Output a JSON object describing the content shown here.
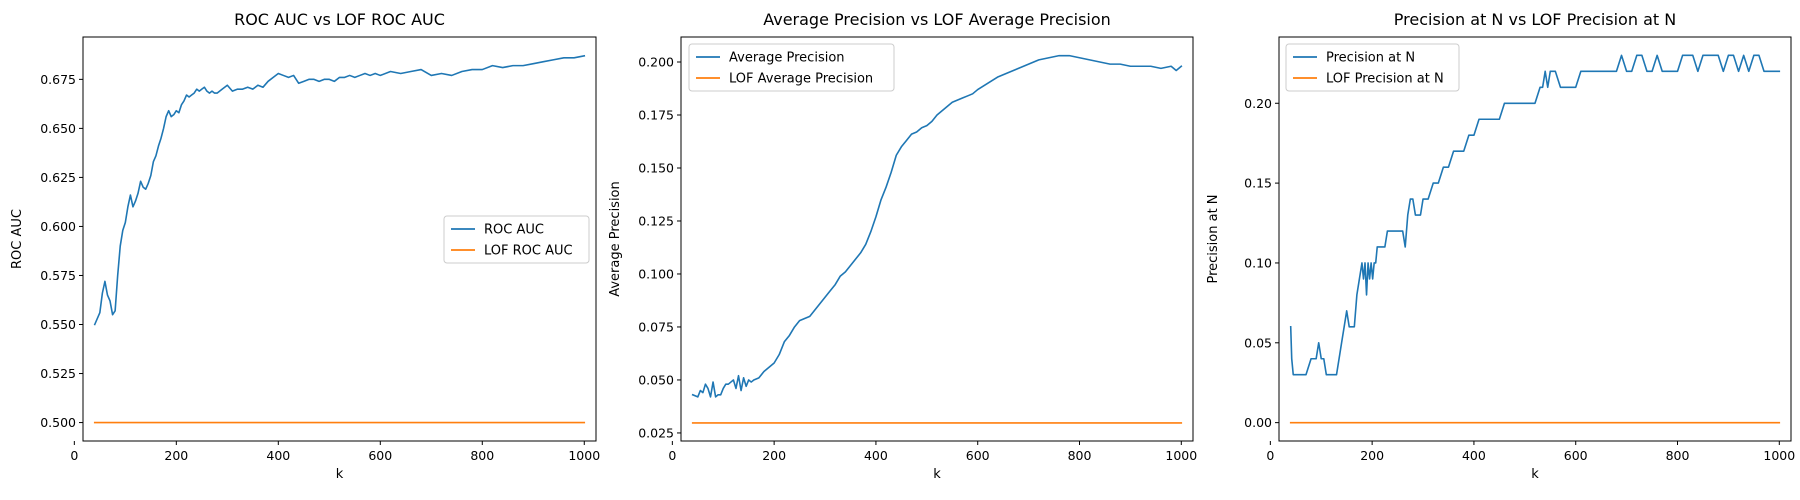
{
  "chart_data": [
    {
      "type": "line",
      "title": "ROC AUC vs LOF ROC AUC",
      "xlabel": "k",
      "ylabel": "ROC AUC",
      "xlim": [
        17,
        1023
      ],
      "ylim": [
        0.4906,
        0.6966
      ],
      "xticks": [
        0,
        200,
        400,
        600,
        800,
        1000
      ],
      "xtick_labels": [
        "0",
        "200",
        "400",
        "600",
        "800",
        "1000"
      ],
      "yticks": [
        0.5,
        0.525,
        0.55,
        0.575,
        0.6,
        0.625,
        0.65,
        0.675
      ],
      "ytick_labels": [
        "0.500",
        "0.525",
        "0.550",
        "0.575",
        "0.600",
        "0.625",
        "0.650",
        "0.675"
      ],
      "legend_position": "center-right",
      "series": [
        {
          "name": "ROC AUC",
          "color": "#1f77b4",
          "x": [
            40,
            50,
            55,
            60,
            65,
            70,
            75,
            80,
            85,
            90,
            95,
            100,
            105,
            110,
            115,
            120,
            125,
            130,
            135,
            140,
            145,
            150,
            155,
            160,
            165,
            170,
            175,
            180,
            185,
            190,
            195,
            200,
            205,
            210,
            215,
            220,
            225,
            230,
            235,
            240,
            245,
            250,
            255,
            260,
            265,
            270,
            275,
            280,
            290,
            300,
            310,
            320,
            330,
            340,
            350,
            360,
            370,
            380,
            390,
            400,
            410,
            420,
            430,
            440,
            450,
            460,
            470,
            480,
            490,
            500,
            510,
            520,
            530,
            540,
            550,
            560,
            570,
            580,
            590,
            600,
            620,
            640,
            660,
            680,
            700,
            720,
            740,
            760,
            780,
            800,
            820,
            840,
            860,
            880,
            900,
            920,
            940,
            960,
            980,
            1000
          ],
          "values": [
            0.55,
            0.556,
            0.566,
            0.572,
            0.565,
            0.562,
            0.555,
            0.557,
            0.575,
            0.59,
            0.598,
            0.602,
            0.61,
            0.616,
            0.61,
            0.613,
            0.617,
            0.623,
            0.62,
            0.619,
            0.622,
            0.626,
            0.633,
            0.636,
            0.641,
            0.645,
            0.65,
            0.656,
            0.659,
            0.656,
            0.657,
            0.659,
            0.658,
            0.662,
            0.664,
            0.667,
            0.666,
            0.667,
            0.668,
            0.67,
            0.669,
            0.67,
            0.671,
            0.669,
            0.668,
            0.669,
            0.668,
            0.668,
            0.67,
            0.672,
            0.669,
            0.67,
            0.67,
            0.671,
            0.67,
            0.672,
            0.671,
            0.674,
            0.676,
            0.678,
            0.677,
            0.676,
            0.677,
            0.673,
            0.674,
            0.675,
            0.675,
            0.674,
            0.675,
            0.675,
            0.674,
            0.676,
            0.676,
            0.677,
            0.676,
            0.677,
            0.678,
            0.677,
            0.678,
            0.677,
            0.679,
            0.678,
            0.679,
            0.68,
            0.677,
            0.678,
            0.677,
            0.679,
            0.68,
            0.68,
            0.682,
            0.681,
            0.682,
            0.682,
            0.683,
            0.684,
            0.685,
            0.686,
            0.686,
            0.687
          ]
        },
        {
          "name": "LOF ROC AUC",
          "color": "#ff7f0e",
          "x": [
            40,
            1000
          ],
          "values": [
            0.5,
            0.5
          ]
        }
      ]
    },
    {
      "type": "line",
      "title": "Average Precision vs LOF Average Precision",
      "xlabel": "k",
      "ylabel": "Average Precision",
      "xlim": [
        17,
        1023
      ],
      "ylim": [
        0.0212,
        0.2118
      ],
      "xticks": [
        0,
        200,
        400,
        600,
        800,
        1000
      ],
      "xtick_labels": [
        "0",
        "200",
        "400",
        "600",
        "800",
        "1000"
      ],
      "yticks": [
        0.025,
        0.05,
        0.075,
        0.1,
        0.125,
        0.15,
        0.175,
        0.2
      ],
      "ytick_labels": [
        "0.025",
        "0.050",
        "0.075",
        "0.100",
        "0.125",
        "0.150",
        "0.175",
        "0.200"
      ],
      "legend_position": "top-left",
      "series": [
        {
          "name": "Average Precision",
          "color": "#1f77b4",
          "x": [
            40,
            50,
            55,
            60,
            65,
            70,
            75,
            80,
            85,
            90,
            95,
            100,
            105,
            110,
            115,
            120,
            125,
            130,
            135,
            140,
            145,
            150,
            155,
            160,
            170,
            180,
            190,
            200,
            210,
            220,
            230,
            240,
            250,
            260,
            270,
            280,
            290,
            300,
            310,
            320,
            330,
            340,
            350,
            360,
            370,
            380,
            390,
            400,
            410,
            420,
            430,
            440,
            450,
            460,
            470,
            480,
            490,
            500,
            510,
            520,
            530,
            540,
            550,
            560,
            570,
            580,
            590,
            600,
            620,
            640,
            660,
            680,
            700,
            720,
            740,
            760,
            780,
            800,
            820,
            840,
            860,
            880,
            900,
            920,
            940,
            960,
            980,
            990,
            1000
          ],
          "values": [
            0.043,
            0.042,
            0.045,
            0.044,
            0.048,
            0.046,
            0.042,
            0.049,
            0.042,
            0.043,
            0.043,
            0.046,
            0.048,
            0.048,
            0.049,
            0.05,
            0.046,
            0.052,
            0.045,
            0.051,
            0.047,
            0.05,
            0.049,
            0.05,
            0.051,
            0.054,
            0.056,
            0.058,
            0.062,
            0.068,
            0.071,
            0.075,
            0.078,
            0.079,
            0.08,
            0.083,
            0.086,
            0.089,
            0.092,
            0.095,
            0.099,
            0.101,
            0.104,
            0.107,
            0.11,
            0.114,
            0.12,
            0.127,
            0.135,
            0.141,
            0.148,
            0.156,
            0.16,
            0.163,
            0.166,
            0.167,
            0.169,
            0.17,
            0.172,
            0.175,
            0.177,
            0.179,
            0.181,
            0.182,
            0.183,
            0.184,
            0.185,
            0.187,
            0.19,
            0.193,
            0.195,
            0.197,
            0.199,
            0.201,
            0.202,
            0.203,
            0.203,
            0.202,
            0.201,
            0.2,
            0.199,
            0.199,
            0.198,
            0.198,
            0.198,
            0.197,
            0.198,
            0.196,
            0.198
          ]
        },
        {
          "name": "LOF Average Precision",
          "color": "#ff7f0e",
          "x": [
            40,
            1000
          ],
          "values": [
            0.0297,
            0.0297
          ]
        }
      ]
    },
    {
      "type": "line",
      "title": "Precision at N vs LOF Precision at N",
      "xlabel": "k",
      "ylabel": "Precision at N",
      "xlim": [
        17,
        1023
      ],
      "ylim": [
        -0.0115,
        0.2415
      ],
      "xticks": [
        0,
        200,
        400,
        600,
        800,
        1000
      ],
      "xtick_labels": [
        "0",
        "200",
        "400",
        "600",
        "800",
        "1000"
      ],
      "yticks": [
        0.0,
        0.05,
        0.1,
        0.15,
        0.2
      ],
      "ytick_labels": [
        "0.00",
        "0.05",
        "0.10",
        "0.15",
        "0.20"
      ],
      "legend_position": "top-left",
      "series": [
        {
          "name": "Precision at N",
          "color": "#1f77b4",
          "x": [
            40,
            42,
            45,
            50,
            55,
            60,
            70,
            80,
            85,
            90,
            95,
            100,
            105,
            110,
            115,
            120,
            125,
            130,
            135,
            140,
            145,
            150,
            155,
            160,
            165,
            170,
            175,
            180,
            183,
            186,
            189,
            192,
            195,
            198,
            201,
            204,
            207,
            210,
            213,
            216,
            220,
            225,
            230,
            235,
            240,
            245,
            250,
            260,
            265,
            270,
            275,
            280,
            285,
            290,
            295,
            300,
            305,
            310,
            320,
            330,
            340,
            350,
            360,
            370,
            380,
            390,
            400,
            410,
            420,
            430,
            440,
            450,
            460,
            470,
            480,
            490,
            500,
            510,
            520,
            530,
            535,
            540,
            545,
            550,
            555,
            560,
            570,
            580,
            590,
            600,
            610,
            620,
            640,
            660,
            680,
            690,
            700,
            710,
            720,
            730,
            740,
            750,
            760,
            770,
            780,
            790,
            800,
            810,
            820,
            830,
            840,
            850,
            860,
            870,
            880,
            890,
            900,
            910,
            920,
            930,
            940,
            950,
            960,
            970,
            980,
            990,
            1000
          ],
          "values": [
            0.06,
            0.04,
            0.03,
            0.03,
            0.03,
            0.03,
            0.03,
            0.04,
            0.04,
            0.04,
            0.05,
            0.04,
            0.04,
            0.03,
            0.03,
            0.03,
            0.03,
            0.03,
            0.04,
            0.05,
            0.06,
            0.07,
            0.06,
            0.06,
            0.06,
            0.08,
            0.09,
            0.1,
            0.09,
            0.1,
            0.08,
            0.1,
            0.09,
            0.1,
            0.09,
            0.1,
            0.1,
            0.11,
            0.11,
            0.11,
            0.11,
            0.11,
            0.12,
            0.12,
            0.12,
            0.12,
            0.12,
            0.12,
            0.11,
            0.13,
            0.14,
            0.14,
            0.13,
            0.13,
            0.13,
            0.14,
            0.14,
            0.14,
            0.15,
            0.15,
            0.16,
            0.16,
            0.17,
            0.17,
            0.17,
            0.18,
            0.18,
            0.19,
            0.19,
            0.19,
            0.19,
            0.19,
            0.2,
            0.2,
            0.2,
            0.2,
            0.2,
            0.2,
            0.2,
            0.21,
            0.21,
            0.22,
            0.21,
            0.22,
            0.22,
            0.22,
            0.21,
            0.21,
            0.21,
            0.21,
            0.22,
            0.22,
            0.22,
            0.22,
            0.22,
            0.23,
            0.22,
            0.22,
            0.23,
            0.23,
            0.22,
            0.22,
            0.23,
            0.22,
            0.22,
            0.22,
            0.22,
            0.23,
            0.23,
            0.23,
            0.22,
            0.23,
            0.23,
            0.23,
            0.23,
            0.22,
            0.23,
            0.23,
            0.22,
            0.23,
            0.22,
            0.23,
            0.23,
            0.22,
            0.22,
            0.22,
            0.22
          ]
        },
        {
          "name": "LOF Precision at N",
          "color": "#ff7f0e",
          "x": [
            40,
            1000
          ],
          "values": [
            0.0,
            0.0
          ]
        }
      ]
    }
  ]
}
